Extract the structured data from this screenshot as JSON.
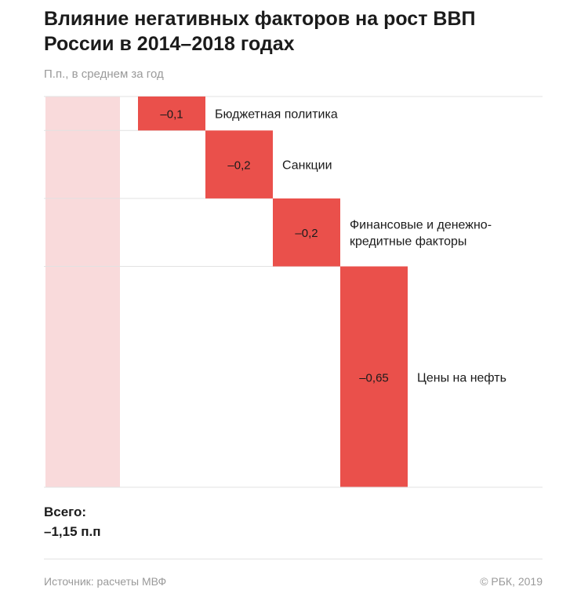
{
  "header": {
    "title": "Влияние негативных факторов на рост ВВП России в 2014–2018 годах",
    "subtitle": "П.п., в среднем за год"
  },
  "chart_data": {
    "type": "bar",
    "subtype": "waterfall",
    "categories": [
      "Бюджетная политика",
      "Санкции",
      "Финансовые и денежно-кредитные факторы",
      "Цены на нефть"
    ],
    "values": [
      -0.1,
      -0.2,
      -0.2,
      -0.65
    ],
    "value_labels": [
      "–0,1",
      "–0,2",
      "–0,2",
      "–0,65"
    ],
    "total": -1.15,
    "title": "Влияние негативных факторов на рост ВВП России в 2014–2018 годах",
    "subtitle": "П.п., в среднем за год",
    "grid": true,
    "colors": {
      "bar": "#ea504b",
      "total_bar": "#f9dadb",
      "grid": "#e2e2e2"
    }
  },
  "summary": {
    "total_label": "Всего:",
    "total_value": "–1,15 п.п"
  },
  "footer": {
    "source": "Источник: расчеты МВФ",
    "copyright": "© РБК, 2019"
  }
}
